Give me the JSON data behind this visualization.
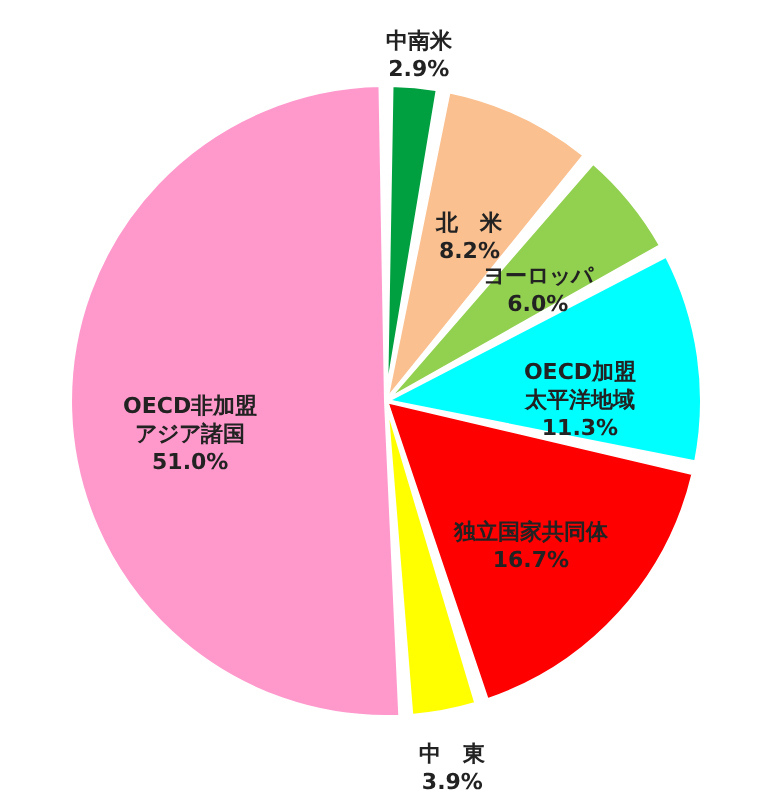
{
  "chart_data": {
    "type": "pie",
    "categories": [
      "中南米",
      "北　米",
      "ヨーロッパ",
      "OECD加盟太平洋地域",
      "独立国家共同体",
      "中　東",
      "OECD非加盟アジア諸国"
    ],
    "values": [
      2.9,
      8.2,
      6.0,
      11.3,
      16.7,
      3.9,
      51.0
    ],
    "value_labels": [
      "2.9%",
      "8.2%",
      "6.0%",
      "11.3%",
      "16.7%",
      "3.9%",
      "51.0%"
    ],
    "colors": [
      "#00a040",
      "#fac090",
      "#92d050",
      "#00ffff",
      "#ff0000",
      "#ffff00",
      "#ff99cc"
    ],
    "legend": false
  }
}
